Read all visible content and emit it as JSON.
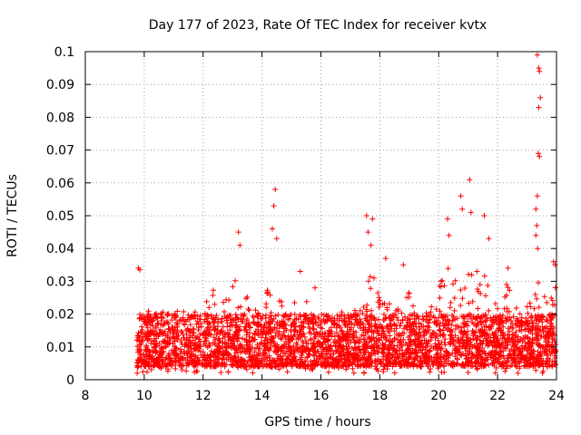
{
  "chart_data": {
    "type": "scatter",
    "title": "Day 177 of 2023, Rate Of TEC Index for receiver kvtx",
    "xlabel": "GPS time / hours",
    "ylabel": "ROTI / TECUs",
    "xlim": [
      8,
      24
    ],
    "ylim": [
      0,
      0.1
    ],
    "grid": true,
    "marker": "+",
    "series_color": "#ff0000",
    "x_ticks": [
      8,
      10,
      12,
      14,
      16,
      18,
      20,
      22,
      24
    ],
    "x_tick_labels": [
      "8",
      "10",
      "12",
      "14",
      "16",
      "18",
      "20",
      "22",
      "24"
    ],
    "y_ticks": [
      0,
      0.01,
      0.02,
      0.03,
      0.04,
      0.05,
      0.06,
      0.07,
      0.08,
      0.09,
      0.1
    ],
    "y_tick_labels": [
      "0",
      "0.01",
      "0.02",
      "0.03",
      "0.04",
      "0.05",
      "0.06",
      "0.07",
      "0.08",
      "0.09",
      "0.1"
    ],
    "data_range": {
      "x_start": 9.75,
      "x_end": 24.0
    },
    "baseline_band": {
      "typical_min": 0.004,
      "typical_max": 0.02
    },
    "notable_points": [
      {
        "x": 9.8,
        "y": 0.034
      },
      {
        "x": 9.85,
        "y": 0.0335
      },
      {
        "x": 13.2,
        "y": 0.045
      },
      {
        "x": 13.25,
        "y": 0.041
      },
      {
        "x": 14.45,
        "y": 0.058
      },
      {
        "x": 14.4,
        "y": 0.053
      },
      {
        "x": 14.5,
        "y": 0.043
      },
      {
        "x": 14.35,
        "y": 0.046
      },
      {
        "x": 15.3,
        "y": 0.033
      },
      {
        "x": 15.8,
        "y": 0.028
      },
      {
        "x": 17.55,
        "y": 0.05
      },
      {
        "x": 17.6,
        "y": 0.045
      },
      {
        "x": 17.75,
        "y": 0.049
      },
      {
        "x": 17.7,
        "y": 0.041
      },
      {
        "x": 18.2,
        "y": 0.037
      },
      {
        "x": 18.8,
        "y": 0.035
      },
      {
        "x": 20.3,
        "y": 0.049
      },
      {
        "x": 20.35,
        "y": 0.044
      },
      {
        "x": 20.75,
        "y": 0.056
      },
      {
        "x": 20.8,
        "y": 0.052
      },
      {
        "x": 21.05,
        "y": 0.061
      },
      {
        "x": 21.1,
        "y": 0.051
      },
      {
        "x": 21.55,
        "y": 0.05
      },
      {
        "x": 21.7,
        "y": 0.043
      },
      {
        "x": 21.3,
        "y": 0.033
      },
      {
        "x": 22.35,
        "y": 0.034
      },
      {
        "x": 22.3,
        "y": 0.029
      },
      {
        "x": 23.35,
        "y": 0.099
      },
      {
        "x": 23.4,
        "y": 0.095
      },
      {
        "x": 23.42,
        "y": 0.094
      },
      {
        "x": 23.45,
        "y": 0.086
      },
      {
        "x": 23.4,
        "y": 0.083
      },
      {
        "x": 23.38,
        "y": 0.069
      },
      {
        "x": 23.42,
        "y": 0.068
      },
      {
        "x": 23.35,
        "y": 0.056
      },
      {
        "x": 23.3,
        "y": 0.052
      },
      {
        "x": 23.33,
        "y": 0.047
      },
      {
        "x": 23.3,
        "y": 0.044
      },
      {
        "x": 23.36,
        "y": 0.04
      },
      {
        "x": 23.9,
        "y": 0.036
      },
      {
        "x": 23.95,
        "y": 0.035
      }
    ]
  }
}
